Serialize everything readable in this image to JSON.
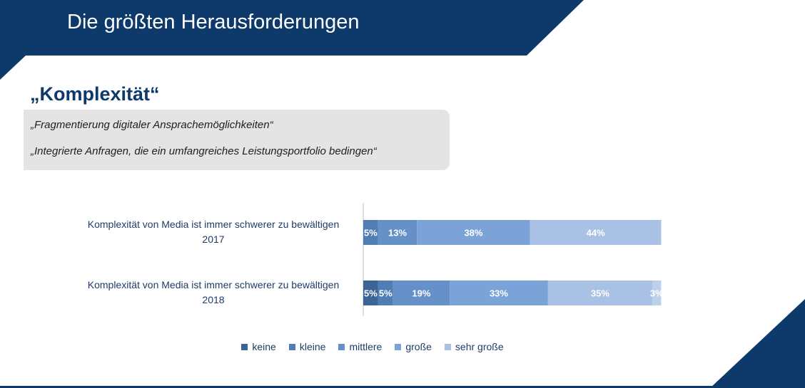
{
  "header": {
    "title": "Die größten Herausforderungen"
  },
  "section": {
    "title": "„Komplexität“",
    "quotes": [
      "„Fragmentierung digitaler Ansprachemöglichkeiten“",
      "„Integrierte Anfragen, die ein umfangreiches Leistungsportfolio bedingen“"
    ]
  },
  "colors": {
    "navy": "#0d3a6b",
    "series": [
      "#3a6596",
      "#4f7db4",
      "#6590c8",
      "#7ba3d8",
      "#a9c1e4"
    ]
  },
  "chart_data": {
    "type": "bar",
    "orientation": "horizontal",
    "stacked": true,
    "categories": [
      {
        "line1": "Komplexität von Media ist immer schwerer zu bewältigen",
        "line2": "2017"
      },
      {
        "line1": "Komplexität von Media ist immer schwerer zu bewältigen",
        "line2": "2018"
      }
    ],
    "series": [
      {
        "name": "keine",
        "values": [
          0,
          5
        ],
        "labels": [
          "",
          "5%"
        ]
      },
      {
        "name": "kleine",
        "values": [
          5,
          5
        ],
        "labels": [
          "5%",
          "5%"
        ]
      },
      {
        "name": "mittlere",
        "values": [
          13,
          19
        ],
        "labels": [
          "13%",
          "19%"
        ]
      },
      {
        "name": "große",
        "values": [
          38,
          33
        ],
        "labels": [
          "38%",
          "33%"
        ]
      },
      {
        "name": "sehr große",
        "values": [
          44,
          35
        ],
        "labels": [
          "44%",
          "35%"
        ]
      },
      {
        "name": "",
        "values": [
          0,
          3
        ],
        "labels": [
          "",
          "3%"
        ]
      }
    ],
    "legend": [
      "keine",
      "kleine",
      "mittlere",
      "große",
      "sehr große"
    ],
    "legend_position": "bottom",
    "xlim": [
      0,
      100
    ]
  }
}
